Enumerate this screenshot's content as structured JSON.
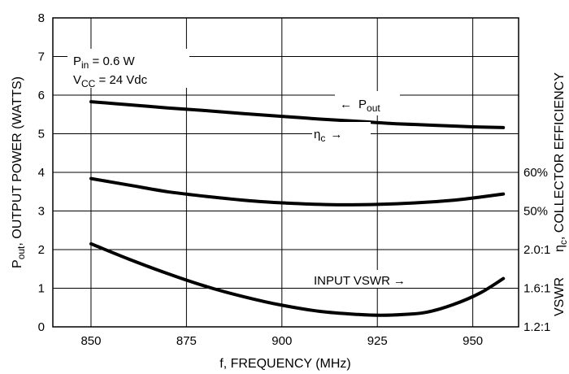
{
  "chart_data": {
    "type": "line",
    "xlabel": "f, FREQUENCY (MHz)",
    "xlim": [
      840,
      962
    ],
    "x_ticks": [
      850,
      875,
      900,
      925,
      950
    ],
    "x_tick_labels": [
      "850",
      "875",
      "900",
      "925",
      "950"
    ],
    "ylim": [
      0,
      8
    ],
    "y_ticks": [
      0,
      1,
      2,
      3,
      4,
      5,
      6,
      7,
      8
    ],
    "y_tick_labels": [
      "0",
      "1",
      "2",
      "3",
      "4",
      "5",
      "6",
      "7",
      "8"
    ],
    "ylabel": {
      "base": "P",
      "sub": "out",
      "rest": ", OUTPUT POWER (WATTS)"
    },
    "right_axes": {
      "efficiency": {
        "label": {
          "base": "η",
          "sub": "c",
          "rest": ", COLLECTOR EFFICIENCY"
        },
        "ticks": [
          {
            "y": 4,
            "label": "60%"
          },
          {
            "y": 3,
            "label": "50%"
          }
        ]
      },
      "vswr": {
        "label": "VSWR",
        "ticks": [
          {
            "y": 2,
            "label": "2.0:1"
          },
          {
            "y": 1,
            "label": "1.6:1"
          },
          {
            "y": 0,
            "label": "1.2:1"
          }
        ]
      }
    },
    "conditions": [
      {
        "base": "P",
        "sub": "in",
        "rest": " = 0.6 W"
      },
      {
        "base": "V",
        "sub": "CC",
        "rest": " = 24 Vdc"
      }
    ],
    "series": [
      {
        "name": "Pout",
        "x": [
          850,
          860,
          870,
          880,
          890,
          900,
          910,
          920,
          930,
          940,
          950,
          958
        ],
        "y": [
          5.83,
          5.75,
          5.67,
          5.6,
          5.52,
          5.45,
          5.38,
          5.32,
          5.26,
          5.22,
          5.18,
          5.16
        ]
      },
      {
        "name": "ηc",
        "x": [
          850,
          860,
          870,
          880,
          890,
          900,
          910,
          916,
          925,
          935,
          945,
          952,
          958
        ],
        "y": [
          3.84,
          3.67,
          3.5,
          3.38,
          3.28,
          3.21,
          3.17,
          3.16,
          3.17,
          3.21,
          3.28,
          3.36,
          3.44
        ]
      },
      {
        "name": "INPUT VSWR",
        "x": [
          850,
          860,
          870,
          880,
          890,
          900,
          910,
          920,
          926,
          932,
          938,
          945,
          952,
          958
        ],
        "y": [
          2.15,
          1.75,
          1.38,
          1.05,
          0.78,
          0.56,
          0.4,
          0.32,
          0.3,
          0.32,
          0.38,
          0.58,
          0.88,
          1.25
        ]
      }
    ],
    "annotations": {
      "pout": {
        "arrow": "←",
        "base": "P",
        "sub": "out"
      },
      "eta": {
        "base": "η",
        "sub": "c",
        "arrow": "→"
      },
      "vswr": {
        "text": "INPUT VSWR",
        "arrow": "→"
      }
    }
  }
}
